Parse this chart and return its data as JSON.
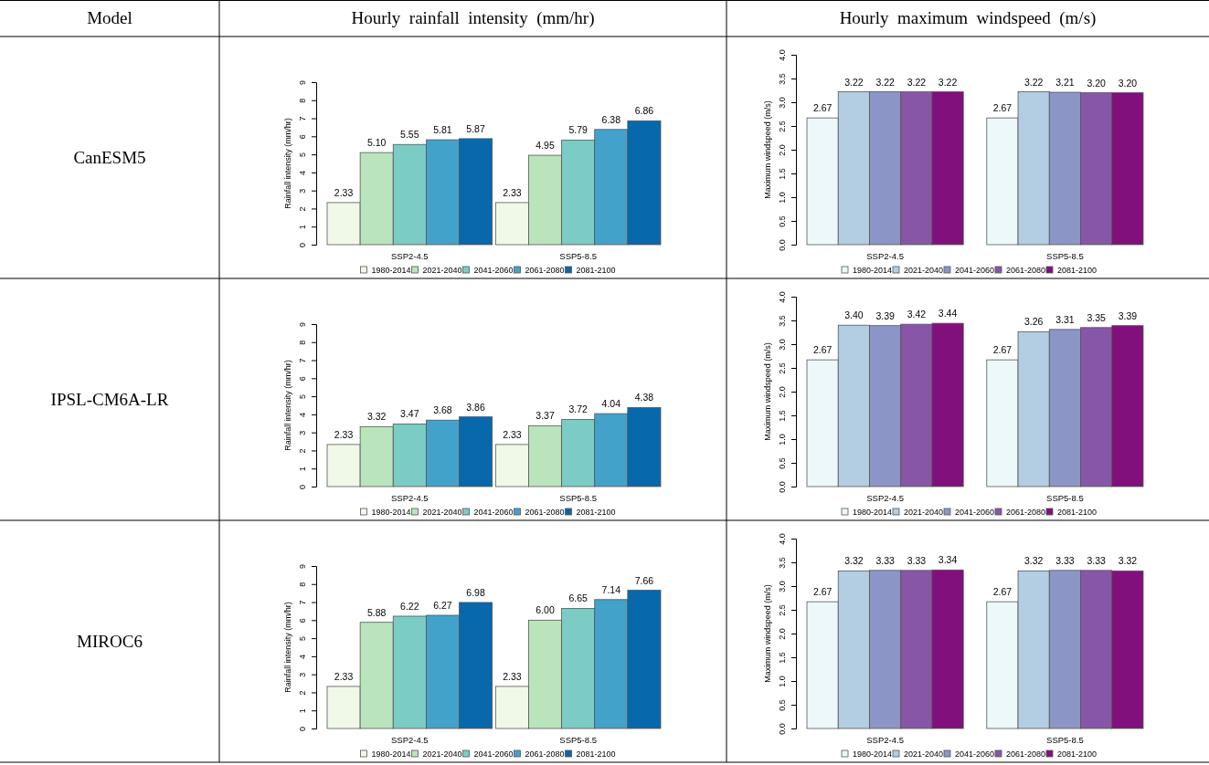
{
  "chart_data": [
    {
      "type": "other",
      "annotations": [
        "Model",
        "Hourly  rainfall  intensity  (mm/hr)",
        "Hourly  maximum  windspeed  (m/s)",
        "CanESM5",
        "IPSL-CM6A-LR",
        "MIROC6"
      ]
    },
    {
      "type": "bar",
      "ylabel": "Rainfall intensity (mm/hr)",
      "categories": [
        "SSP2-4.5",
        "SSP5-8.5"
      ],
      "ylim": [
        0,
        9
      ],
      "yticks": [
        0,
        1,
        2,
        3,
        4,
        5,
        6,
        7,
        8,
        9
      ],
      "legend": "bottom",
      "series": [
        {
          "name": "1980-2014",
          "color": "#f0f9e8",
          "values": [
            2.33,
            2.33
          ],
          "value_labels": [
            "2.33",
            "2.33"
          ]
        },
        {
          "name": "2021-2040",
          "color": "#bae4bc",
          "values": [
            5.1,
            4.95
          ],
          "value_labels": [
            "5.10",
            "4.95"
          ]
        },
        {
          "name": "2041-2060",
          "color": "#7bccc4",
          "values": [
            5.55,
            5.79
          ],
          "value_labels": [
            "5.55",
            "5.79"
          ]
        },
        {
          "name": "2061-2080",
          "color": "#43a2ca",
          "values": [
            5.81,
            6.38
          ],
          "value_labels": [
            "5.81",
            "6.38"
          ]
        },
        {
          "name": "2081-2100",
          "color": "#0868ac",
          "values": [
            5.87,
            6.86
          ],
          "value_labels": [
            "5.87",
            "6.86"
          ]
        }
      ]
    },
    {
      "type": "bar",
      "ylabel": "Maximum windspeed (m/s)",
      "categories": [
        "SSP2-4.5",
        "SSP5-8.5"
      ],
      "ylim": [
        0,
        4
      ],
      "yticks": [
        {
          "value": 0,
          "label": "0.0"
        },
        {
          "value": 0.5,
          "label": "0.5"
        },
        {
          "value": 1,
          "label": "1.0"
        },
        {
          "value": 1.5,
          "label": "1.5"
        },
        {
          "value": 2,
          "label": "2.0"
        },
        {
          "value": 2.5,
          "label": "2.5"
        },
        {
          "value": 3,
          "label": "3.0"
        },
        {
          "value": 3.5,
          "label": "3.5"
        },
        {
          "value": 4,
          "label": "4.0"
        }
      ],
      "legend": "bottom",
      "series": [
        {
          "name": "1980-2014",
          "color": "#edf8fb",
          "values": [
            2.67,
            2.67
          ],
          "value_labels": [
            "2.67",
            "2.67"
          ]
        },
        {
          "name": "2021-2040",
          "color": "#b3cde3",
          "values": [
            3.22,
            3.22
          ],
          "value_labels": [
            "3.22",
            "3.22"
          ]
        },
        {
          "name": "2041-2060",
          "color": "#8c96c6",
          "values": [
            3.22,
            3.21
          ],
          "value_labels": [
            "3.22",
            "3.21"
          ]
        },
        {
          "name": "2061-2080",
          "color": "#8856a7",
          "values": [
            3.22,
            3.2
          ],
          "value_labels": [
            "3.22",
            "3.20"
          ]
        },
        {
          "name": "2081-2100",
          "color": "#810f7c",
          "values": [
            3.22,
            3.2
          ],
          "value_labels": [
            "3.22",
            "3.20"
          ]
        }
      ]
    },
    {
      "type": "bar",
      "ylabel": "Rainfall intensity (mm/hr)",
      "categories": [
        "SSP2-4.5",
        "SSP5-8.5"
      ],
      "ylim": [
        0,
        9
      ],
      "yticks": [
        0,
        1,
        2,
        3,
        4,
        5,
        6,
        7,
        8,
        9
      ],
      "legend": "bottom",
      "series": [
        {
          "name": "1980-2014",
          "color": "#f0f9e8",
          "values": [
            2.33,
            2.33
          ],
          "value_labels": [
            "2.33",
            "2.33"
          ]
        },
        {
          "name": "2021-2040",
          "color": "#bae4bc",
          "values": [
            3.32,
            3.37
          ],
          "value_labels": [
            "3.32",
            "3.37"
          ]
        },
        {
          "name": "2041-2060",
          "color": "#7bccc4",
          "values": [
            3.47,
            3.72
          ],
          "value_labels": [
            "3.47",
            "3.72"
          ]
        },
        {
          "name": "2061-2080",
          "color": "#43a2ca",
          "values": [
            3.68,
            4.04
          ],
          "value_labels": [
            "3.68",
            "4.04"
          ]
        },
        {
          "name": "2081-2100",
          "color": "#0868ac",
          "values": [
            3.86,
            4.38
          ],
          "value_labels": [
            "3.86",
            "4.38"
          ]
        }
      ]
    },
    {
      "type": "bar",
      "ylabel": "Maximum windspeed (m/s)",
      "categories": [
        "SSP2-4.5",
        "SSP5-8.5"
      ],
      "ylim": [
        0,
        4
      ],
      "yticks": [
        {
          "value": 0,
          "label": "0.0"
        },
        {
          "value": 0.5,
          "label": "0.5"
        },
        {
          "value": 1,
          "label": "1.0"
        },
        {
          "value": 1.5,
          "label": "1.5"
        },
        {
          "value": 2,
          "label": "2.0"
        },
        {
          "value": 2.5,
          "label": "2.5"
        },
        {
          "value": 3,
          "label": "3.0"
        },
        {
          "value": 3.5,
          "label": "3.5"
        },
        {
          "value": 4,
          "label": "4.0"
        }
      ],
      "legend": "bottom",
      "series": [
        {
          "name": "1980-2014",
          "color": "#edf8fb",
          "values": [
            2.67,
            2.67
          ],
          "value_labels": [
            "2.67",
            "2.67"
          ]
        },
        {
          "name": "2021-2040",
          "color": "#b3cde3",
          "values": [
            3.4,
            3.26
          ],
          "value_labels": [
            "3.40",
            "3.26"
          ]
        },
        {
          "name": "2041-2060",
          "color": "#8c96c6",
          "values": [
            3.39,
            3.31
          ],
          "value_labels": [
            "3.39",
            "3.31"
          ]
        },
        {
          "name": "2061-2080",
          "color": "#8856a7",
          "values": [
            3.42,
            3.35
          ],
          "value_labels": [
            "3.42",
            "3.35"
          ]
        },
        {
          "name": "2081-2100",
          "color": "#810f7c",
          "values": [
            3.44,
            3.39
          ],
          "value_labels": [
            "3.44",
            "3.39"
          ]
        }
      ]
    },
    {
      "type": "bar",
      "ylabel": "Rainfall intensity (mm/hr)",
      "categories": [
        "SSP2-4.5",
        "SSP5-8.5"
      ],
      "ylim": [
        0,
        9
      ],
      "yticks": [
        0,
        1,
        2,
        3,
        4,
        5,
        6,
        7,
        8,
        9
      ],
      "legend": "bottom",
      "series": [
        {
          "name": "1980-2014",
          "color": "#f0f9e8",
          "values": [
            2.33,
            2.33
          ],
          "value_labels": [
            "2.33",
            "2.33"
          ]
        },
        {
          "name": "2021-2040",
          "color": "#bae4bc",
          "values": [
            5.88,
            6.0
          ],
          "value_labels": [
            "5.88",
            "6.00"
          ]
        },
        {
          "name": "2041-2060",
          "color": "#7bccc4",
          "values": [
            6.22,
            6.65
          ],
          "value_labels": [
            "6.22",
            "6.65"
          ]
        },
        {
          "name": "2061-2080",
          "color": "#43a2ca",
          "values": [
            6.27,
            7.14
          ],
          "value_labels": [
            "6.27",
            "7.14"
          ]
        },
        {
          "name": "2081-2100",
          "color": "#0868ac",
          "values": [
            6.98,
            7.66
          ],
          "value_labels": [
            "6.98",
            "7.66"
          ]
        }
      ]
    },
    {
      "type": "bar",
      "ylabel": "Maximum windspeed (m/s)",
      "categories": [
        "SSP2-4.5",
        "SSP5-8.5"
      ],
      "ylim": [
        0,
        4
      ],
      "yticks": [
        {
          "value": 0,
          "label": "0.0"
        },
        {
          "value": 0.5,
          "label": "0.5"
        },
        {
          "value": 1,
          "label": "1.0"
        },
        {
          "value": 1.5,
          "label": "1.5"
        },
        {
          "value": 2,
          "label": "2.0"
        },
        {
          "value": 2.5,
          "label": "2.5"
        },
        {
          "value": 3,
          "label": "3.0"
        },
        {
          "value": 3.5,
          "label": "3.5"
        },
        {
          "value": 4,
          "label": "4.0"
        }
      ],
      "legend": "bottom",
      "series": [
        {
          "name": "1980-2014",
          "color": "#edf8fb",
          "values": [
            2.67,
            2.67
          ],
          "value_labels": [
            "2.67",
            "2.67"
          ]
        },
        {
          "name": "2021-2040",
          "color": "#b3cde3",
          "values": [
            3.32,
            3.32
          ],
          "value_labels": [
            "3.32",
            "3.32"
          ]
        },
        {
          "name": "2041-2060",
          "color": "#8c96c6",
          "values": [
            3.33,
            3.33
          ],
          "value_labels": [
            "3.33",
            "3.33"
          ]
        },
        {
          "name": "2061-2080",
          "color": "#8856a7",
          "values": [
            3.33,
            3.33
          ],
          "value_labels": [
            "3.33",
            "3.33"
          ]
        },
        {
          "name": "2081-2100",
          "color": "#810f7c",
          "values": [
            3.34,
            3.32
          ],
          "value_labels": [
            "3.34",
            "3.32"
          ]
        }
      ]
    }
  ]
}
